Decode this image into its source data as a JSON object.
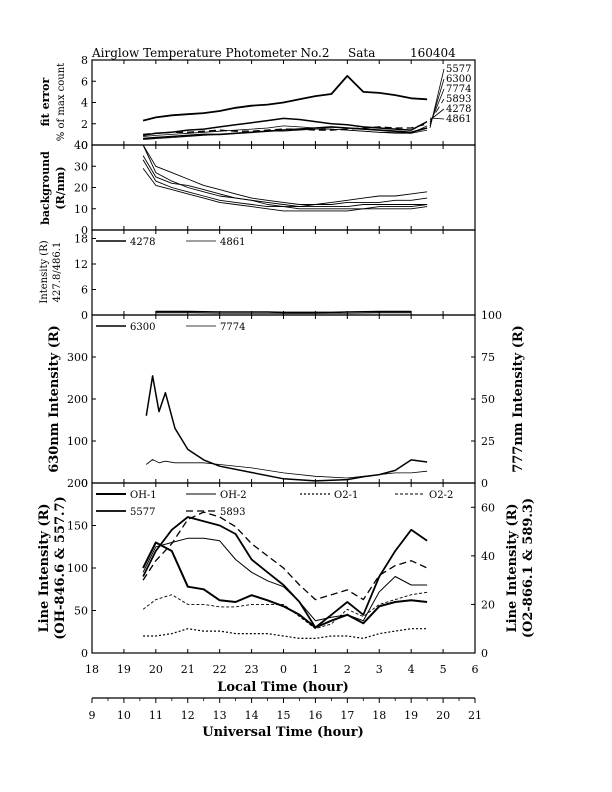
{
  "header": {
    "title": "Airglow Temperature Photometer No.2",
    "site": "Sata",
    "date": "160404"
  },
  "x_axes": {
    "local_label": "Local Time (hour)",
    "local_ticks": [
      "18",
      "19",
      "20",
      "21",
      "22",
      "23",
      "0",
      "1",
      "2",
      "3",
      "4",
      "5",
      "6"
    ],
    "ut_label": "Universal Time (hour)",
    "ut_ticks": [
      "9",
      "10",
      "11",
      "12",
      "13",
      "14",
      "15",
      "16",
      "17",
      "18",
      "19",
      "20",
      "21"
    ]
  },
  "chart_data": [
    {
      "type": "line",
      "panel": "fit-error",
      "ylabel_lines": [
        "fit error",
        "% of max count"
      ],
      "ylim": [
        0,
        8
      ],
      "yticks": [
        "0",
        "2",
        "4",
        "6",
        "8"
      ],
      "x": [
        19.6,
        20.0,
        20.5,
        21.0,
        21.5,
        22.0,
        22.5,
        23.0,
        23.5,
        0.0,
        0.5,
        1.0,
        1.5,
        2.0,
        2.5,
        3.0,
        3.5,
        4.0,
        4.5
      ],
      "series": [
        {
          "name": "5577",
          "values": [
            2.3,
            2.6,
            2.8,
            2.9,
            3.0,
            3.2,
            3.5,
            3.7,
            3.8,
            4.0,
            4.3,
            4.6,
            4.8,
            6.5,
            5.0,
            4.9,
            4.7,
            4.4,
            4.3
          ]
        },
        {
          "name": "6300",
          "values": [
            0.9,
            1.1,
            1.2,
            1.4,
            1.5,
            1.7,
            1.9,
            2.1,
            2.3,
            2.5,
            2.4,
            2.2,
            2.0,
            1.9,
            1.7,
            1.6,
            1.5,
            1.4,
            2.2
          ]
        },
        {
          "name": "7774",
          "values": [
            0.8,
            0.9,
            1.0,
            1.1,
            1.2,
            1.3,
            1.4,
            1.5,
            1.6,
            1.8,
            1.7,
            1.6,
            1.5,
            1.4,
            1.3,
            1.2,
            1.2,
            1.1,
            1.8
          ]
        },
        {
          "name": "5893",
          "values": [
            1.0,
            1.1,
            1.2,
            1.2,
            1.3,
            1.4,
            1.3,
            1.3,
            1.4,
            1.5,
            1.5,
            1.4,
            1.4,
            1.5,
            1.6,
            1.7,
            1.6,
            1.6,
            2.0
          ]
        },
        {
          "name": "4278",
          "values": [
            0.6,
            0.7,
            0.8,
            0.9,
            1.0,
            1.0,
            1.1,
            1.2,
            1.3,
            1.4,
            1.5,
            1.6,
            1.7,
            1.6,
            1.5,
            1.4,
            1.3,
            1.2,
            1.6
          ]
        },
        {
          "name": "4861",
          "values": [
            0.5,
            0.6,
            0.7,
            0.8,
            0.9,
            1.0,
            1.1,
            1.2,
            1.3,
            1.3,
            1.4,
            1.5,
            1.5,
            1.4,
            1.3,
            1.2,
            1.1,
            1.1,
            1.4
          ]
        }
      ]
    },
    {
      "type": "line",
      "panel": "background",
      "ylabel_lines": [
        "background",
        "(R/nm)"
      ],
      "ylim": [
        0,
        40
      ],
      "yticks": [
        "0",
        "10",
        "20",
        "30",
        "40"
      ],
      "x": [
        19.6,
        20.0,
        20.5,
        21.0,
        21.5,
        22.0,
        22.5,
        23.0,
        23.5,
        0.0,
        0.5,
        1.0,
        1.5,
        2.0,
        2.5,
        3.0,
        3.5,
        4.0,
        4.5
      ],
      "series": [
        {
          "name": "bg-a",
          "values": [
            47,
            30,
            27,
            24,
            21,
            19,
            17,
            15,
            14,
            13,
            12,
            12,
            12,
            13,
            13,
            13,
            14,
            14,
            15
          ]
        },
        {
          "name": "bg-b",
          "values": [
            40,
            27,
            23,
            20,
            18,
            16,
            15,
            14,
            13,
            12,
            11,
            11,
            11,
            11,
            12,
            12,
            12,
            12,
            12
          ]
        },
        {
          "name": "bg-c",
          "values": [
            33,
            23,
            20,
            18,
            16,
            14,
            13,
            12,
            11,
            11,
            10,
            10,
            10,
            10,
            10,
            11,
            11,
            11,
            12
          ]
        },
        {
          "name": "bg-d",
          "values": [
            35,
            25,
            22,
            21,
            19,
            17,
            15,
            14,
            12,
            11,
            11,
            12,
            13,
            14,
            15,
            16,
            16,
            17,
            18
          ]
        },
        {
          "name": "bg-e",
          "values": [
            29,
            21,
            19,
            17,
            15,
            13,
            12,
            11,
            10,
            9,
            9,
            9,
            9,
            9,
            10,
            10,
            10,
            10,
            11
          ]
        }
      ]
    },
    {
      "type": "line",
      "panel": "intensity-427-486",
      "ylabel_lines": [
        "Intensity (R)",
        "427.8/486.1"
      ],
      "ylim": [
        0,
        20
      ],
      "yticks": [
        "0",
        "6",
        "12",
        "18"
      ],
      "legend": [
        "4278",
        "4861"
      ],
      "x": [
        20.0,
        21.0,
        22.0,
        23.0,
        23.5,
        0.0,
        0.5,
        1.0,
        1.5,
        2.0,
        3.0,
        4.0
      ],
      "series": [
        {
          "name": "4278",
          "values": [
            0.8,
            0.8,
            0.7,
            0.7,
            0.7,
            0.6,
            0.6,
            0.6,
            0.6,
            0.7,
            0.8,
            0.8
          ]
        },
        {
          "name": "4861",
          "values": [
            0.5,
            0.5,
            0.4,
            0.4,
            0.4,
            0.3,
            0.3,
            0.3,
            0.4,
            0.4,
            0.5,
            0.5
          ]
        }
      ]
    },
    {
      "type": "line",
      "panel": "630-777",
      "ylabel": "630nm Intensity (R)",
      "ylabel_right": "777nm Intensity (R)",
      "ylim": [
        0,
        400
      ],
      "ylim_right": [
        0,
        100
      ],
      "yticks": [
        "0",
        "100",
        "200",
        "300"
      ],
      "yticks_right": [
        "0",
        "25",
        "50",
        "75",
        "100"
      ],
      "legend": [
        "6300",
        "7774"
      ],
      "x": [
        19.7,
        19.9,
        20.1,
        20.3,
        20.6,
        21.0,
        21.5,
        22.0,
        23.0,
        0.0,
        1.0,
        2.0,
        2.5,
        3.0,
        3.5,
        4.0,
        4.5
      ],
      "series": [
        {
          "name": "6300",
          "axis": "left",
          "values": [
            160,
            255,
            170,
            215,
            130,
            80,
            55,
            40,
            25,
            10,
            5,
            8,
            15,
            20,
            30,
            55,
            50
          ]
        },
        {
          "name": "7774",
          "axis": "right",
          "values": [
            11,
            14,
            12,
            13,
            12,
            12,
            12,
            11,
            9,
            6,
            4,
            3,
            4,
            5,
            6,
            6,
            7
          ]
        }
      ]
    },
    {
      "type": "line",
      "panel": "line-intensity",
      "ylabel_lines": [
        "Line Intensity (R)",
        "(OH-846.6 & 557.7)"
      ],
      "ylabel_right_lines": [
        "Line Intensity (R)",
        "(O2-866.1 & 589.3)"
      ],
      "ylim": [
        0,
        200
      ],
      "ylim_right": [
        0,
        70
      ],
      "yticks": [
        "0",
        "50",
        "100",
        "150",
        "200"
      ],
      "yticks_right": [
        "0",
        "20",
        "40",
        "60"
      ],
      "legend": [
        "OH-1",
        "OH-2",
        "O2-1",
        "O2-2",
        "5577",
        "5893"
      ],
      "x": [
        19.6,
        20.0,
        20.5,
        21.0,
        21.5,
        22.0,
        22.5,
        23.0,
        23.5,
        0.0,
        0.5,
        1.0,
        1.5,
        2.0,
        2.5,
        3.0,
        3.5,
        4.0,
        4.5
      ],
      "series": [
        {
          "name": "OH-1",
          "axis": "left",
          "values": [
            100,
            130,
            120,
            78,
            75,
            62,
            60,
            68,
            62,
            55,
            45,
            30,
            38,
            45,
            35,
            55,
            60,
            62,
            60
          ]
        },
        {
          "name": "OH-2",
          "axis": "left",
          "values": [
            95,
            125,
            130,
            135,
            135,
            132,
            110,
            95,
            85,
            78,
            60,
            38,
            42,
            45,
            38,
            72,
            90,
            80,
            80
          ]
        },
        {
          "name": "O2-1",
          "axis": "right",
          "values": [
            7,
            7,
            8,
            10,
            9,
            9,
            8,
            8,
            8,
            7,
            6,
            6,
            7,
            7,
            6,
            8,
            9,
            10,
            10
          ]
        },
        {
          "name": "O2-2",
          "axis": "right",
          "values": [
            18,
            22,
            24,
            20,
            20,
            19,
            19,
            20,
            20,
            20,
            15,
            10,
            12,
            18,
            15,
            20,
            22,
            24,
            25
          ]
        },
        {
          "name": "5577",
          "axis": "left",
          "values": [
            90,
            120,
            145,
            160,
            155,
            150,
            140,
            110,
            95,
            80,
            60,
            30,
            45,
            60,
            45,
            90,
            120,
            145,
            132
          ]
        },
        {
          "name": "5893",
          "axis": "right",
          "values": [
            30,
            38,
            45,
            55,
            58,
            56,
            52,
            45,
            40,
            35,
            28,
            22,
            24,
            26,
            22,
            32,
            36,
            38,
            35
          ]
        }
      ]
    }
  ]
}
